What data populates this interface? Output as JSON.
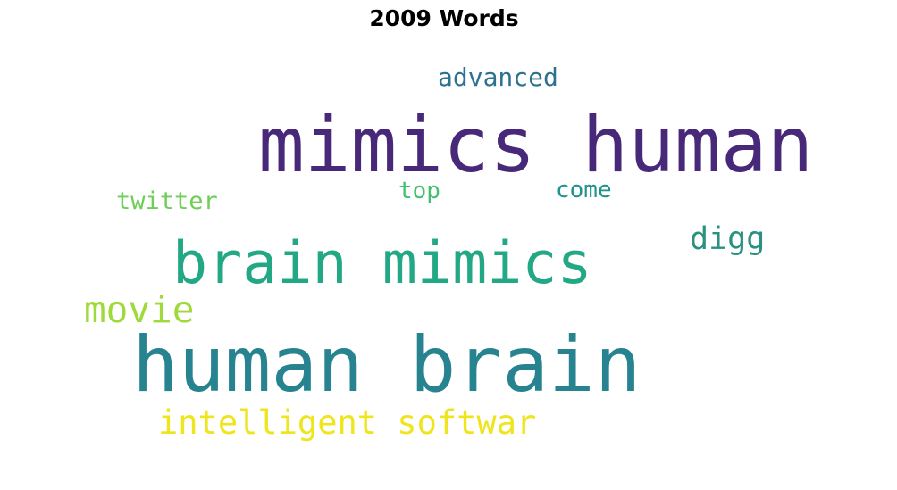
{
  "title": "2009 Words",
  "words": {
    "mimics_human": {
      "text": "mimics human",
      "color": "#482878"
    },
    "human_brain": {
      "text": "human brain",
      "color": "#26838f"
    },
    "brain_mimics": {
      "text": "brain mimics",
      "color": "#22a884"
    },
    "intelligent_softwar": {
      "text": "intelligent softwar",
      "color": "#efe51c"
    },
    "movie": {
      "text": "movie",
      "color": "#9fda3a"
    },
    "digg": {
      "text": "digg",
      "color": "#2a9080"
    },
    "advanced": {
      "text": "advanced",
      "color": "#2c718e"
    },
    "twitter": {
      "text": "twitter",
      "color": "#6ece58"
    },
    "top": {
      "text": "top",
      "color": "#44bf70"
    },
    "come": {
      "text": "come",
      "color": "#21918c"
    }
  }
}
